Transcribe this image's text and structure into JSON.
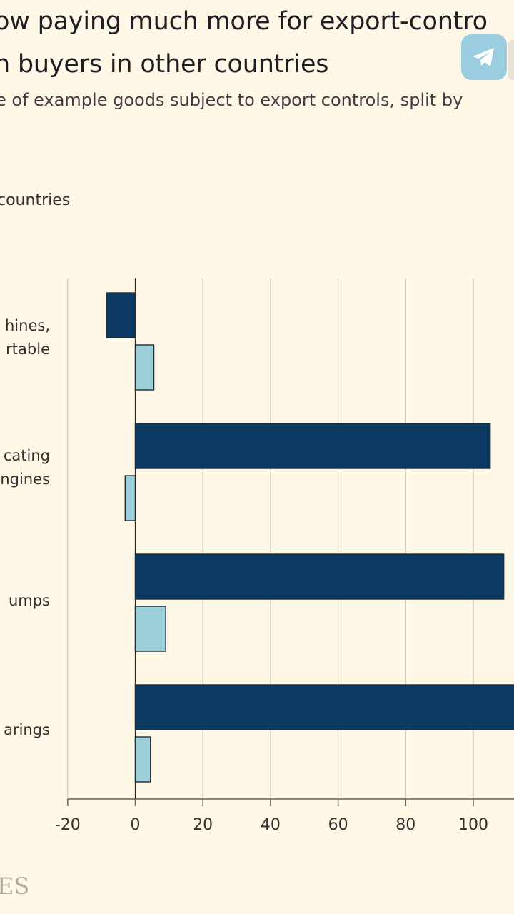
{
  "header": {
    "title_line1": "ow paying much more for export-contro",
    "title_line2": "n buyers in other countries",
    "subtitle": "e of example goods subject to export controls, split by",
    "legend_label": "countries"
  },
  "icons": {
    "share": "telegram-icon"
  },
  "footer": {
    "source_mark": "ES"
  },
  "colors": {
    "background": "#fff8e7",
    "series_dark": "#0d3a63",
    "series_light": "#9ed0dc",
    "grid": "#dbc6b8",
    "telegram": "#8ec9df"
  },
  "chart_data": {
    "type": "bar",
    "orientation": "horizontal",
    "categories": [
      [
        "hines,",
        "rtable"
      ],
      [
        "cating",
        "ngines"
      ],
      [
        "umps"
      ],
      [
        "arings"
      ]
    ],
    "series": [
      {
        "values": [
          -8.5,
          105,
          109,
          113
        ]
      },
      {
        "values": [
          5.5,
          -3,
          9,
          4.5
        ]
      }
    ],
    "xlim": [
      -20,
      113
    ],
    "xticks": [
      -20,
      0,
      20,
      40,
      60,
      80,
      100
    ],
    "grid": true
  }
}
